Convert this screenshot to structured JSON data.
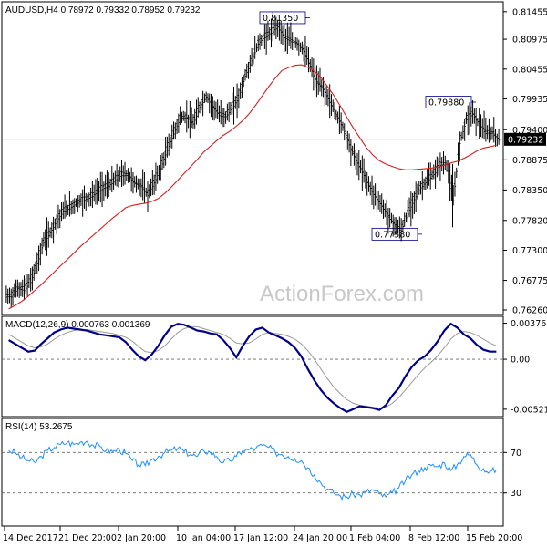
{
  "colors": {
    "bar": "#000000",
    "ma": "#d42020",
    "macd": "#00008b",
    "signal": "#999999",
    "rsi": "#1e90ff",
    "grid": "#888888",
    "watermark": "#c8c8c8"
  },
  "watermark": "ActionForex.com",
  "chart_data": [
    {
      "type": "line",
      "subtype": "ohlc",
      "title": "AUDUSD,H4  0.78972 0.79332 0.78952 0.79232",
      "ylim": [
        0.7626,
        0.815
      ],
      "y_ticks": [
        "0.81455",
        "0.80975",
        "0.80455",
        "0.79935",
        "0.79400",
        "0.78875",
        "0.78350",
        "0.77820",
        "0.77300",
        "0.76775",
        "0.76260"
      ],
      "current_price": "0.79232",
      "annotations": [
        {
          "text": "0.81350",
          "value": 0.8135
        },
        {
          "text": "0.79880",
          "value": 0.7988
        },
        {
          "text": "0.77580",
          "value": 0.7758
        }
      ],
      "series": [
        {
          "name": "",
          "kind": "close",
          "values": [
            0.765,
            0.7664,
            0.7662,
            0.7676,
            0.7708,
            0.7745,
            0.7761,
            0.7782,
            0.7799,
            0.7804,
            0.7812,
            0.7818,
            0.7822,
            0.783,
            0.7838,
            0.7843,
            0.7853,
            0.7862,
            0.7861,
            0.7847,
            0.7842,
            0.7827,
            0.7849,
            0.7874,
            0.7906,
            0.7934,
            0.7961,
            0.7962,
            0.7951,
            0.798,
            0.7998,
            0.7981,
            0.7966,
            0.7964,
            0.7979,
            0.7997,
            0.8034,
            0.8061,
            0.8091,
            0.8102,
            0.811,
            0.812,
            0.8102,
            0.8095,
            0.809,
            0.8078,
            0.8052,
            0.8023,
            0.8012,
            0.799,
            0.7967,
            0.7946,
            0.7916,
            0.7888,
            0.7868,
            0.7844,
            0.7824,
            0.7808,
            0.779,
            0.7774,
            0.7765,
            0.7795,
            0.782,
            0.784,
            0.7852,
            0.7863,
            0.788,
            0.788,
            0.7818,
            0.7918,
            0.7958,
            0.7968,
            0.795,
            0.7935,
            0.7935,
            0.7923
          ]
        },
        {
          "name": "",
          "kind": "ma",
          "values": [
            0.7628,
            0.7634,
            0.7641,
            0.765,
            0.766,
            0.767,
            0.7681,
            0.7692,
            0.7703,
            0.7714,
            0.7725,
            0.7736,
            0.7746,
            0.7756,
            0.7766,
            0.7776,
            0.7786,
            0.7795,
            0.7804,
            0.7808,
            0.781,
            0.7812,
            0.7815,
            0.782,
            0.7829,
            0.784,
            0.7852,
            0.7864,
            0.7876,
            0.7888,
            0.7901,
            0.7911,
            0.7921,
            0.793,
            0.7937,
            0.7946,
            0.7956,
            0.7968,
            0.7983,
            0.7999,
            0.8015,
            0.803,
            0.8043,
            0.8048,
            0.8052,
            0.8053,
            0.8049,
            0.8042,
            0.8031,
            0.8016,
            0.8,
            0.7981,
            0.7962,
            0.7943,
            0.7926,
            0.7909,
            0.7896,
            0.7886,
            0.788,
            0.7876,
            0.7872,
            0.787,
            0.787,
            0.7871,
            0.7872,
            0.7873,
            0.7875,
            0.7878,
            0.7882,
            0.7885,
            0.789,
            0.7896,
            0.7903,
            0.7908,
            0.791,
            0.7913
          ]
        }
      ]
    },
    {
      "type": "line",
      "title": "MACD(12,26,9) 0.000763 0.001369",
      "ylim": [
        -0.0058,
        0.0041
      ],
      "y_ticks": [
        "0.003762",
        "0.00",
        "-0.005216"
      ],
      "series": [
        {
          "name": "",
          "kind": "macd",
          "values": [
            0.002,
            0.0016,
            0.0012,
            0.0008,
            0.0009,
            0.0016,
            0.0022,
            0.0028,
            0.0031,
            0.0033,
            0.0032,
            0.0031,
            0.003,
            0.0028,
            0.0026,
            0.0025,
            0.0024,
            0.0023,
            0.0018,
            0.001,
            0.0003,
            -0.0001,
            0.0005,
            0.0014,
            0.0025,
            0.0034,
            0.0037,
            0.0036,
            0.0033,
            0.003,
            0.0029,
            0.0027,
            0.0026,
            0.002,
            0.0012,
            0.0002,
            0.0014,
            0.0024,
            0.0031,
            0.0033,
            0.0028,
            0.0025,
            0.0022,
            0.0018,
            0.0012,
            0.0003,
            -0.001,
            -0.0022,
            -0.0032,
            -0.004,
            -0.0046,
            -0.0051,
            -0.0055,
            -0.0052,
            -0.0049,
            -0.005,
            -0.0051,
            -0.0053,
            -0.0048,
            -0.0038,
            -0.003,
            -0.0018,
            -0.0008,
            -0.0001,
            0.0003,
            0.001,
            0.0019,
            0.003,
            0.0037,
            0.0033,
            0.0026,
            0.0022,
            0.0015,
            0.001,
            0.0008,
            0.0008
          ]
        },
        {
          "name": "",
          "kind": "signal",
          "values": [
            0.0026,
            0.0022,
            0.0018,
            0.0014,
            0.0012,
            0.0013,
            0.0016,
            0.0021,
            0.0025,
            0.0028,
            0.003,
            0.0031,
            0.0031,
            0.003,
            0.0029,
            0.0028,
            0.0027,
            0.0025,
            0.0023,
            0.0019,
            0.0013,
            0.0008,
            0.0007,
            0.0009,
            0.0014,
            0.0021,
            0.0028,
            0.0032,
            0.0034,
            0.0034,
            0.0032,
            0.003,
            0.0028,
            0.0026,
            0.0022,
            0.0017,
            0.0016,
            0.0017,
            0.0021,
            0.0026,
            0.0028,
            0.0027,
            0.0026,
            0.0024,
            0.0021,
            0.0016,
            0.0009,
            0.0,
            -0.001,
            -0.002,
            -0.0029,
            -0.0036,
            -0.0042,
            -0.0046,
            -0.0048,
            -0.0049,
            -0.005,
            -0.0051,
            -0.005,
            -0.0046,
            -0.004,
            -0.0032,
            -0.0024,
            -0.0016,
            -0.0009,
            -0.0003,
            0.0004,
            0.0012,
            0.0021,
            0.0027,
            0.0029,
            0.0028,
            0.0025,
            0.0021,
            0.0017,
            0.0014
          ]
        }
      ]
    },
    {
      "type": "line",
      "title": "RSI(14) 53.2675",
      "ylim": [
        0,
        100
      ],
      "y_ticks": [
        "70",
        "30"
      ],
      "series": [
        {
          "name": "",
          "kind": "rsi",
          "values": [
            72,
            70,
            65,
            62,
            60,
            66,
            72,
            75,
            78,
            80,
            78,
            80,
            81,
            77,
            76,
            72,
            71,
            73,
            69,
            62,
            58,
            57,
            63,
            66,
            70,
            72,
            74,
            71,
            68,
            66,
            72,
            70,
            66,
            60,
            62,
            66,
            72,
            73,
            74,
            77,
            75,
            70,
            68,
            66,
            64,
            62,
            55,
            48,
            40,
            34,
            30,
            27,
            26,
            29,
            28,
            31,
            33,
            29,
            26,
            30,
            35,
            42,
            48,
            52,
            55,
            57,
            56,
            60,
            52,
            58,
            66,
            68,
            58,
            54,
            51,
            53
          ]
        }
      ]
    }
  ],
  "x_axis": {
    "labels": [
      "14 Dec 2017",
      "21 Dec 20:00",
      "2 Jan 20:00",
      "10 Jan 04:00",
      "17 Jan 12:00",
      "24 Jan 20:00",
      "1 Feb 04:00",
      "8 Feb 12:00",
      "15 Feb 20:00"
    ]
  }
}
